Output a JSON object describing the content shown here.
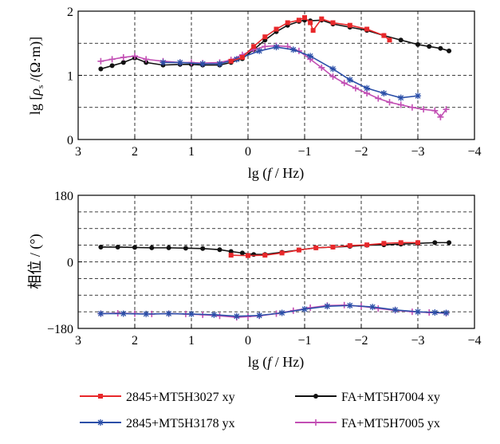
{
  "chart_data": [
    {
      "type": "line",
      "panel": "top",
      "ylabel": "lg [ρs/(Ω·m)]",
      "xlabel": "lg (f / Hz)",
      "xlim": [
        3,
        -4
      ],
      "ylim": [
        0,
        2
      ],
      "x_ticks": [
        "3",
        "2",
        "1",
        "0",
        "−1",
        "−2",
        "−3",
        "−4"
      ],
      "y_ticks": [
        "0",
        "1",
        "2"
      ],
      "grid": "dashed",
      "series": [
        {
          "name": "2845+MT5H3027 xy",
          "color": "#e8282b",
          "marker": "square",
          "x": [
            0.3,
            0.1,
            -0.1,
            -0.3,
            -0.5,
            -0.7,
            -0.9,
            -1.0,
            -1.1,
            -1.15,
            -1.3,
            -1.5,
            -1.8,
            -2.1,
            -2.4,
            -2.5
          ],
          "y": [
            1.22,
            1.28,
            1.45,
            1.6,
            1.72,
            1.82,
            1.86,
            1.9,
            1.82,
            1.7,
            1.88,
            1.82,
            1.78,
            1.72,
            1.62,
            1.55
          ]
        },
        {
          "name": "FA+MT5H7004 xy",
          "color": "#111111",
          "marker": "circle",
          "x": [
            2.6,
            2.4,
            2.2,
            2.0,
            1.8,
            1.5,
            1.2,
            1.0,
            0.8,
            0.5,
            0.3,
            0.1,
            -0.1,
            -0.3,
            -0.5,
            -0.7,
            -0.9,
            -1.0,
            -1.1,
            -1.3,
            -1.5,
            -1.8,
            -2.1,
            -2.4,
            -2.7,
            -3.0,
            -3.2,
            -3.4,
            -3.55
          ],
          "y": [
            1.1,
            1.15,
            1.2,
            1.27,
            1.2,
            1.16,
            1.17,
            1.17,
            1.16,
            1.16,
            1.2,
            1.26,
            1.4,
            1.55,
            1.68,
            1.78,
            1.84,
            1.86,
            1.85,
            1.86,
            1.8,
            1.75,
            1.7,
            1.62,
            1.55,
            1.48,
            1.45,
            1.42,
            1.38
          ]
        },
        {
          "name": "2845+MT5H3178 yx",
          "color": "#2b4fa8",
          "marker": "asterisk",
          "x": [
            1.5,
            1.2,
            0.8,
            0.5,
            0.2,
            -0.2,
            -0.5,
            -0.8,
            -1.1,
            -1.5,
            -1.8,
            -2.1,
            -2.4,
            -2.7,
            -3.0
          ],
          "y": [
            1.2,
            1.2,
            1.18,
            1.18,
            1.25,
            1.38,
            1.44,
            1.4,
            1.3,
            1.1,
            0.93,
            0.8,
            0.72,
            0.65,
            0.68
          ]
        },
        {
          "name": "FA+MT5H7005 yx",
          "color": "#c24fb4",
          "marker": "plus",
          "x": [
            2.6,
            2.4,
            2.2,
            2.0,
            1.8,
            1.5,
            1.2,
            1.0,
            0.8,
            0.5,
            0.3,
            0.1,
            -0.1,
            -0.3,
            -0.5,
            -0.7,
            -0.9,
            -1.1,
            -1.3,
            -1.5,
            -1.7,
            -1.9,
            -2.1,
            -2.3,
            -2.5,
            -2.7,
            -2.9,
            -3.1,
            -3.3,
            -3.4,
            -3.5
          ],
          "y": [
            1.22,
            1.25,
            1.28,
            1.3,
            1.25,
            1.22,
            1.2,
            1.2,
            1.19,
            1.2,
            1.24,
            1.32,
            1.4,
            1.45,
            1.46,
            1.45,
            1.38,
            1.25,
            1.12,
            0.98,
            0.88,
            0.8,
            0.72,
            0.64,
            0.58,
            0.54,
            0.5,
            0.47,
            0.45,
            0.35,
            0.47
          ]
        }
      ]
    },
    {
      "type": "line",
      "panel": "bottom",
      "ylabel": "相位/(°)",
      "xlabel": "lg (f / Hz)",
      "xlim": [
        3,
        -4
      ],
      "ylim": [
        -180,
        180
      ],
      "x_ticks": [
        "3",
        "2",
        "1",
        "0",
        "−1",
        "−2",
        "−3",
        "−4"
      ],
      "y_ticks": [
        "−180",
        "0",
        "180"
      ],
      "grid": "dashed",
      "series": [
        {
          "name": "2845+MT5H3027 xy",
          "color": "#e8282b",
          "marker": "square",
          "x": [
            0.3,
            0.0,
            -0.3,
            -0.6,
            -0.9,
            -1.2,
            -1.5,
            -1.8,
            -2.1,
            -2.4,
            -2.7,
            -3.0
          ],
          "y": [
            18,
            17,
            18,
            24,
            32,
            38,
            40,
            44,
            46,
            50,
            52,
            52
          ]
        },
        {
          "name": "FA+MT5H7004 xy",
          "color": "#111111",
          "marker": "circle",
          "x": [
            2.6,
            2.3,
            2.0,
            1.7,
            1.4,
            1.1,
            0.8,
            0.5,
            0.3,
            0.1,
            -0.1,
            -0.3,
            -0.6,
            -0.9,
            -1.2,
            -1.5,
            -1.8,
            -2.1,
            -2.4,
            -2.7,
            -3.0,
            -3.3,
            -3.55
          ],
          "y": [
            40,
            40,
            39,
            38,
            38,
            37,
            36,
            33,
            28,
            24,
            20,
            20,
            26,
            32,
            38,
            40,
            42,
            45,
            46,
            48,
            50,
            52,
            52
          ]
        },
        {
          "name": "2845+MT5H3178 yx",
          "color": "#2b4fa8",
          "marker": "asterisk",
          "x": [
            2.6,
            2.2,
            1.8,
            1.4,
            1.0,
            0.6,
            0.2,
            -0.2,
            -0.6,
            -1.0,
            -1.4,
            -1.8,
            -2.2,
            -2.6,
            -3.0,
            -3.3,
            -3.5
          ],
          "y": [
            -140,
            -140,
            -141,
            -140,
            -141,
            -143,
            -147,
            -145,
            -138,
            -128,
            -120,
            -118,
            -122,
            -130,
            -135,
            -137,
            -138
          ]
        },
        {
          "name": "FA+MT5H7005 yx",
          "color": "#c24fb4",
          "marker": "plus",
          "x": [
            2.6,
            2.3,
            2.0,
            1.7,
            1.4,
            1.1,
            0.8,
            0.5,
            0.2,
            0.0,
            -0.2,
            -0.5,
            -0.8,
            -1.1,
            -1.4,
            -1.7,
            -2.0,
            -2.3,
            -2.6,
            -2.9,
            -3.2,
            -3.5
          ],
          "y": [
            -140,
            -139,
            -140,
            -141,
            -140,
            -141,
            -143,
            -146,
            -150,
            -148,
            -146,
            -140,
            -132,
            -124,
            -118,
            -117,
            -120,
            -126,
            -131,
            -135,
            -137,
            -139
          ]
        }
      ]
    }
  ],
  "legend": [
    {
      "label": "2845+MT5H3027 xy",
      "color": "#e8282b",
      "marker": "square"
    },
    {
      "label": "FA+MT5H7004 xy",
      "color": "#111111",
      "marker": "circle"
    },
    {
      "label": "2845+MT5H3178 yx",
      "color": "#2b4fa8",
      "marker": "asterisk"
    },
    {
      "label": "FA+MT5H7005 yx",
      "color": "#c24fb4",
      "marker": "plus"
    }
  ]
}
